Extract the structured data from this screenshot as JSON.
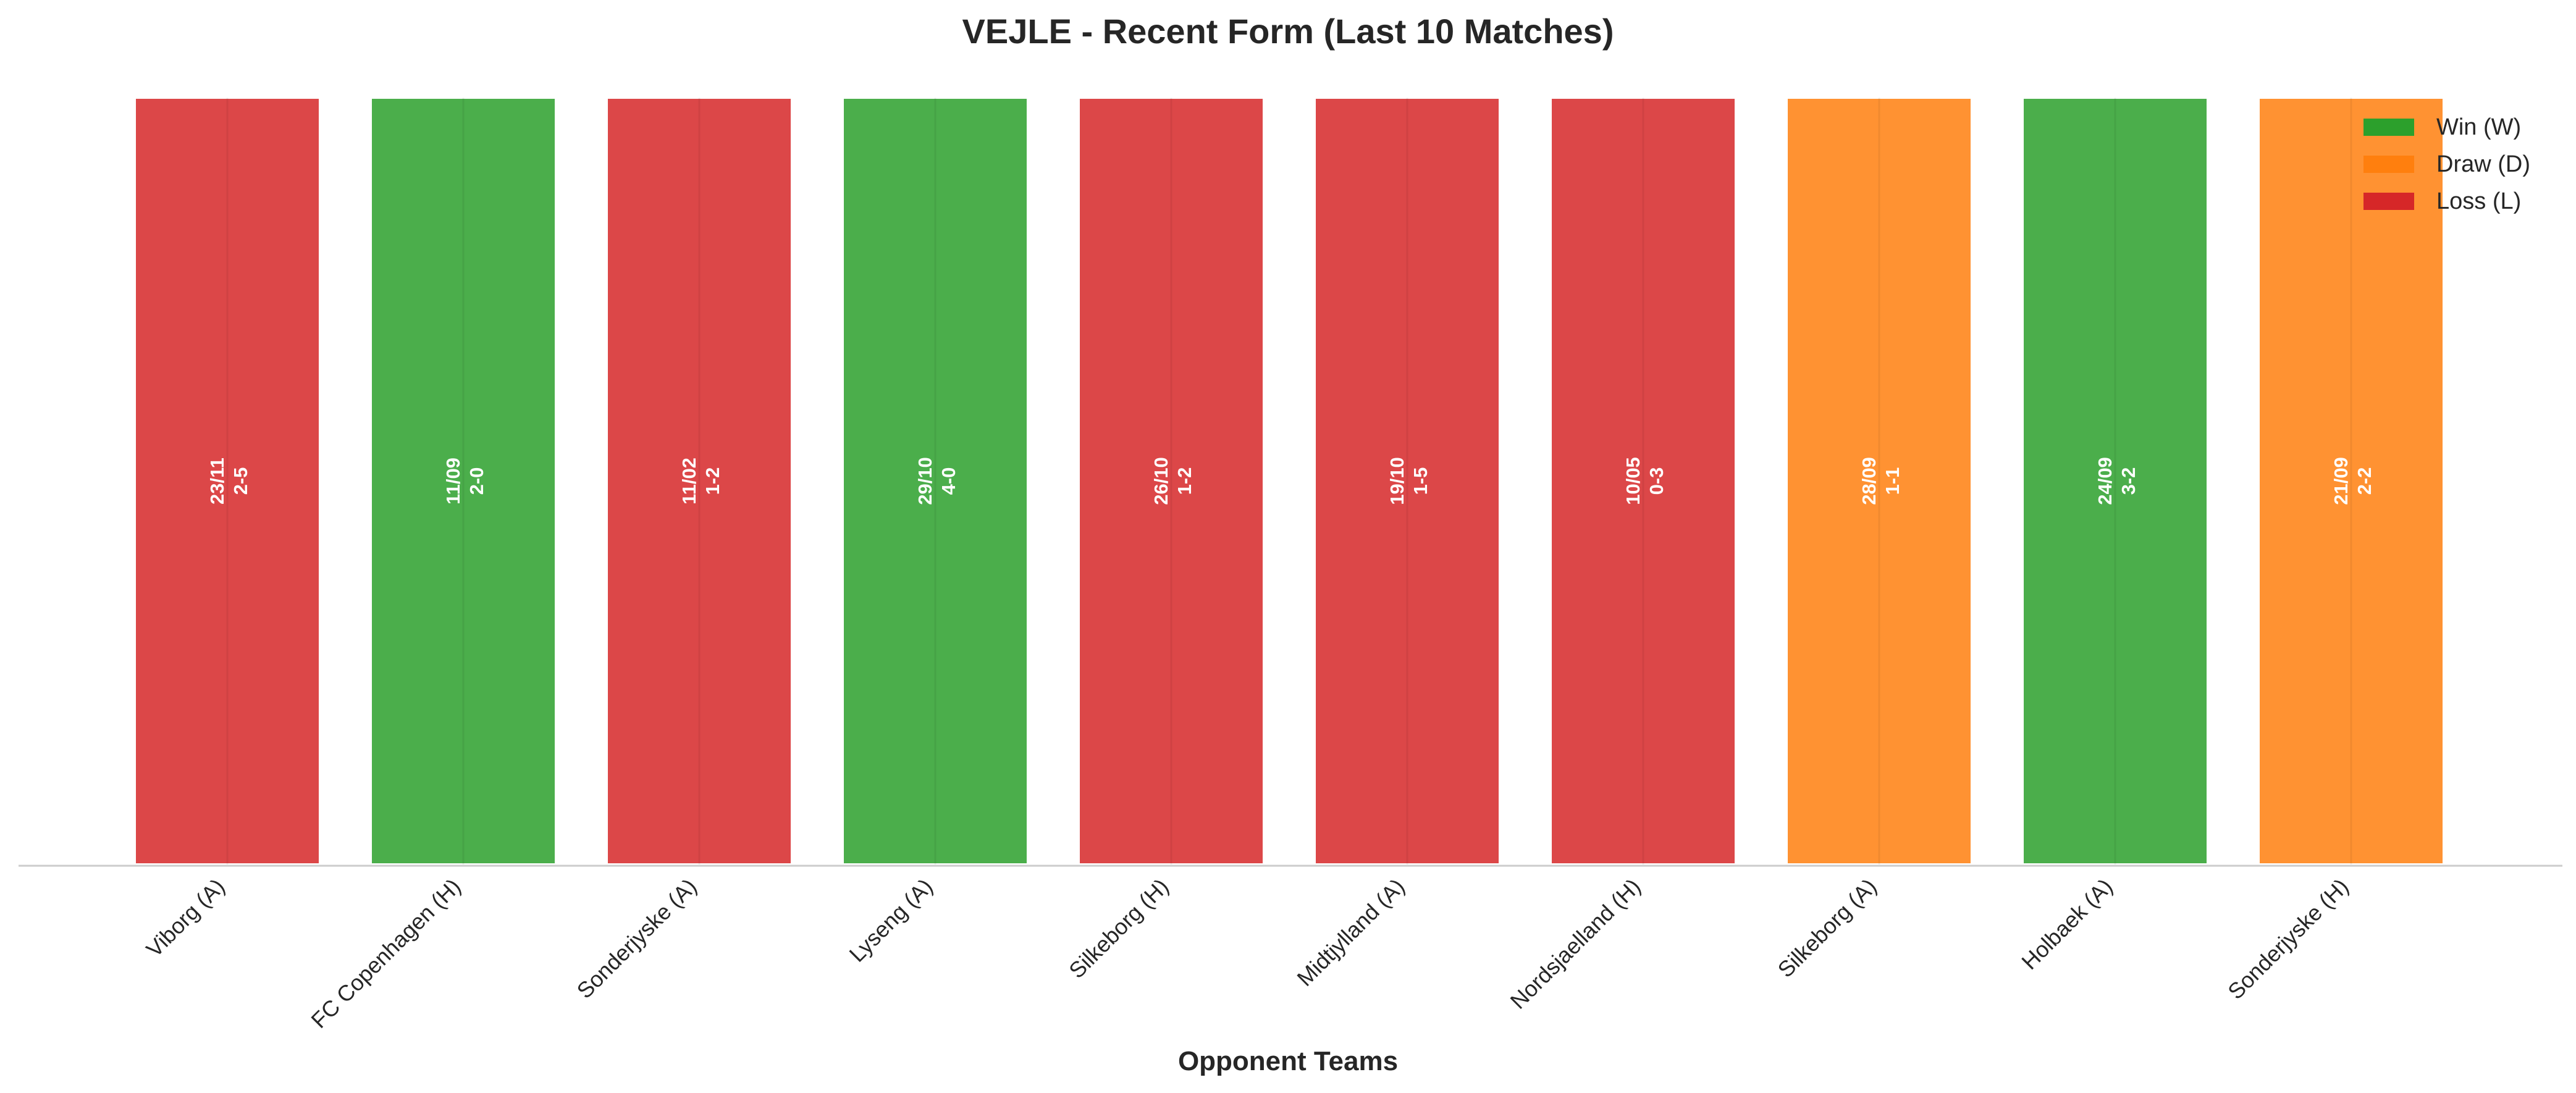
{
  "chart_data": {
    "type": "bar",
    "title": "VEJLE - Recent Form (Last 10 Matches)",
    "xlabel": "Opponent Teams",
    "ylabel": "",
    "grid": false,
    "legend_position": "top-right",
    "categories": [
      "Viborg (A)",
      "FC Copenhagen (H)",
      "Sonderjyske (A)",
      "Lyseng (A)",
      "Silkeborg (H)",
      "Midtjylland (A)",
      "Nordsjaelland (H)",
      "Silkeborg (A)",
      "Holbaek (A)",
      "Sonderjyske (H)"
    ],
    "values": [
      1,
      1,
      1,
      1,
      1,
      1,
      1,
      1,
      1,
      1
    ],
    "results": [
      "L",
      "W",
      "L",
      "W",
      "L",
      "L",
      "L",
      "D",
      "W",
      "D"
    ],
    "dates": [
      "23/11",
      "11/09",
      "11/02",
      "29/10",
      "26/10",
      "19/10",
      "10/05",
      "28/09",
      "24/09",
      "21/09"
    ],
    "scores": [
      "2-5",
      "2-0",
      "1-2",
      "4-0",
      "1-2",
      "1-5",
      "0-3",
      "1-1",
      "3-2",
      "2-2"
    ],
    "colors": {
      "W": "#2ca02c",
      "D": "#ff7f0e",
      "L": "#d62728"
    },
    "legend": [
      {
        "key": "W",
        "label": "Win (W)"
      },
      {
        "key": "D",
        "label": "Draw (D)"
      },
      {
        "key": "L",
        "label": "Loss (L)"
      }
    ]
  }
}
